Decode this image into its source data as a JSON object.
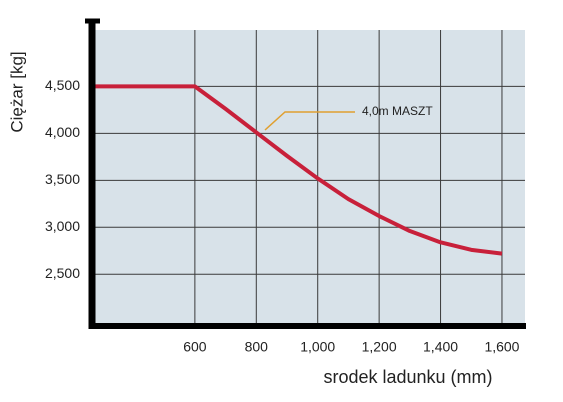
{
  "chart_data": {
    "type": "line",
    "x_label": "srodek ladunku (mm)",
    "y_label": "Ciężar [kg]",
    "annotation": "4,0m MASZT",
    "x": [
      265,
      600,
      700,
      800,
      900,
      1000,
      1100,
      1200,
      1300,
      1400,
      1500,
      1600
    ],
    "series": [
      {
        "color": "#c8203a",
        "values": [
          4500,
          4500,
          4260,
          4010,
          3760,
          3520,
          3300,
          3120,
          2960,
          2840,
          2760,
          2720
        ]
      }
    ],
    "xlim": [
      265,
      1675
    ],
    "ylim": [
      1960,
      5100
    ],
    "xticks": [
      600,
      800,
      {
        "value": 1000,
        "label": "1,000"
      },
      {
        "value": 1200,
        "label": "1,200"
      },
      {
        "value": 1400,
        "label": "1,400"
      },
      {
        "value": 1600,
        "label": "1,600"
      }
    ],
    "yticks": [
      {
        "value": 2500,
        "label": "2,500"
      },
      {
        "value": 3000,
        "label": "3,000"
      },
      {
        "value": 3500,
        "label": "3,500"
      },
      {
        "value": 4000,
        "label": "4,000"
      },
      {
        "value": 4500,
        "label": "4,500"
      }
    ],
    "grid": true
  }
}
